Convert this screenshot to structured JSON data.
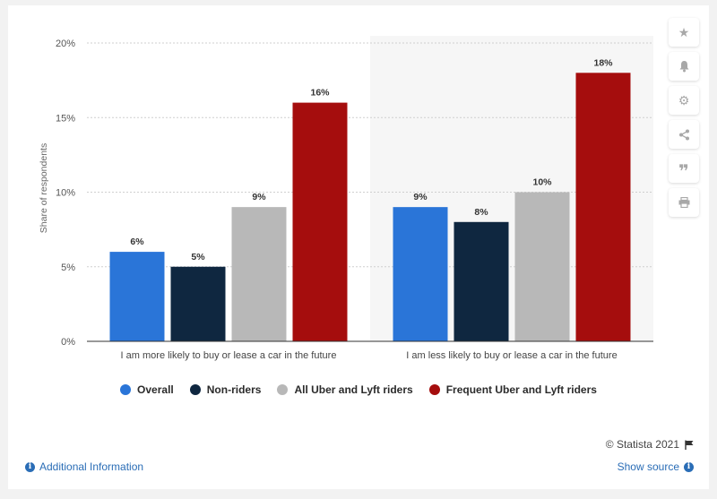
{
  "chart_data": {
    "type": "bar",
    "categories": [
      "I am more likely to buy or lease a car in the future",
      "I am less likely to buy or lease a car in the future"
    ],
    "series": [
      {
        "name": "Overall",
        "values": [
          6,
          9
        ],
        "labels": [
          "6%",
          "9%"
        ],
        "color": "#2a75d8"
      },
      {
        "name": "Non-riders",
        "values": [
          5,
          8
        ],
        "labels": [
          "5%",
          "8%"
        ],
        "color": "#0f2740"
      },
      {
        "name": "All Uber and Lyft riders",
        "values": [
          9,
          10
        ],
        "labels": [
          "9%",
          "10%"
        ],
        "color": "#b8b8b8"
      },
      {
        "name": "Frequent Uber and Lyft riders",
        "values": [
          16,
          18
        ],
        "labels": [
          "16%",
          "18%"
        ],
        "color": "#a50d0d"
      }
    ],
    "ylabel": "Share of respondents",
    "ylim": [
      0,
      20
    ],
    "yticks": [
      0,
      5,
      10,
      15,
      20
    ],
    "ytick_labels": [
      "0%",
      "5%",
      "10%",
      "15%",
      "20%"
    ],
    "grid": true,
    "legend_position": "bottom"
  },
  "footer": {
    "copyright": "© Statista 2021",
    "additional_info": "Additional Information",
    "show_source": "Show source"
  },
  "toolbar": {
    "icons": [
      "star-icon",
      "bell-icon",
      "gear-icon",
      "share-icon",
      "quote-icon",
      "print-icon"
    ]
  }
}
